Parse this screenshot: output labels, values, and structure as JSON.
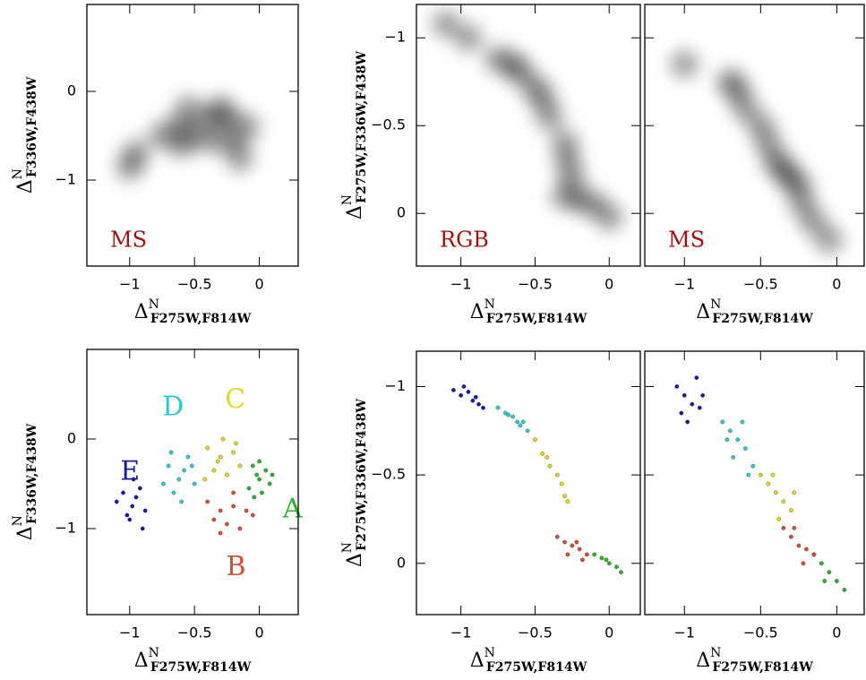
{
  "chart_data": [
    {
      "type": "density",
      "annotation": "MS",
      "annotation_color": "#a01010",
      "xlabel": [
        "Δ",
        "N",
        "F275W,F814W"
      ],
      "ylabel": [
        "Δ",
        "N",
        "F336W,F438W"
      ],
      "xlim": [
        -1.33,
        0.3
      ],
      "ylim": [
        -1.97,
        0.98
      ],
      "xticks": [
        {
          "value": -1,
          "label": "−1"
        },
        {
          "value": -0.5,
          "label": "−0.5"
        },
        0
      ],
      "yticks": [
        0,
        {
          "value": -1,
          "label": "−1"
        }
      ],
      "ytick_labels": true,
      "color": "#000000",
      "x": [
        -0.95,
        -0.62,
        -0.55,
        -0.4,
        -0.25,
        -0.2,
        -0.35,
        -0.75,
        -0.1,
        -1.0,
        -0.6,
        -0.15,
        -0.5,
        -0.3
      ],
      "y": [
        -0.7,
        -0.4,
        -0.2,
        -0.3,
        -0.3,
        -0.55,
        -0.55,
        -0.5,
        -0.4,
        -0.85,
        -0.6,
        -0.75,
        -0.5,
        -0.2
      ]
    },
    {
      "type": "density",
      "annotation": "RGB",
      "annotation_color": "#a01010",
      "xlabel": [
        "Δ",
        "N",
        "F275W,F814W"
      ],
      "ylabel": [
        "Δ",
        "N",
        "F275W,F336W,F438W"
      ],
      "xlim": [
        -1.3,
        0.21
      ],
      "ylim": [
        0.3,
        -1.19
      ],
      "xticks": [
        {
          "value": -1,
          "label": "−1"
        },
        {
          "value": -0.5,
          "label": "−0.5"
        },
        0
      ],
      "yticks": [
        {
          "value": -1,
          "label": "−1"
        },
        {
          "value": -0.5,
          "label": "−0.5"
        },
        0
      ],
      "ytick_labels": true,
      "color": "#000000",
      "x": [
        -0.95,
        -0.65,
        -0.6,
        -0.75,
        -0.5,
        -0.4,
        -0.3,
        -0.28,
        -0.25,
        -0.3,
        -0.2,
        -0.1,
        0.0,
        -1.1,
        -0.45
      ],
      "y": [
        -1.0,
        -0.85,
        -0.8,
        -0.88,
        -0.72,
        -0.55,
        -0.4,
        -0.3,
        -0.2,
        -0.1,
        -0.08,
        -0.05,
        0.02,
        -1.08,
        -0.65
      ]
    },
    {
      "type": "density",
      "annotation": "MS",
      "annotation_color": "#a01010",
      "xlabel": [
        "Δ",
        "N",
        "F275W,F814W"
      ],
      "xlim": [
        -1.26,
        0.18
      ],
      "ylim": [
        0.3,
        -1.19
      ],
      "xticks": [
        {
          "value": -1,
          "label": "−1"
        },
        {
          "value": -0.5,
          "label": "−0.5"
        },
        0
      ],
      "yticks": [
        -1,
        -0.5,
        0
      ],
      "ytick_labels": false,
      "color": "#000000",
      "x": [
        -1.0,
        -0.65,
        -0.6,
        -0.5,
        -0.45,
        -0.4,
        -0.3,
        -0.25,
        -0.22,
        -0.15,
        -0.05,
        -0.7,
        -0.35
      ],
      "y": [
        -0.85,
        -0.7,
        -0.6,
        -0.5,
        -0.4,
        -0.3,
        -0.2,
        -0.15,
        -0.05,
        0.05,
        0.15,
        -0.75,
        -0.25
      ]
    },
    {
      "type": "scatter",
      "label_series": true,
      "xlabel": [
        "Δ",
        "N",
        "F275W,F814W"
      ],
      "ylabel": [
        "Δ",
        "N",
        "F336W,F438W"
      ],
      "xlim": [
        -1.33,
        0.3
      ],
      "ylim": [
        -1.96,
        1.0
      ],
      "xticks": [
        {
          "value": -1,
          "label": "−1"
        },
        {
          "value": -0.5,
          "label": "−0.5"
        },
        0
      ],
      "yticks": [
        0,
        {
          "value": -1,
          "label": "−1"
        }
      ],
      "ytick_labels": true,
      "series": [
        {
          "name": "E",
          "color": "#1a1aa0",
          "x": [
            -1.05,
            -0.98,
            -0.92,
            -0.88,
            -1.0,
            -0.95,
            -1.1,
            -0.9,
            -0.97,
            -1.02
          ],
          "values": [
            -0.6,
            -0.75,
            -0.55,
            -0.8,
            -0.9,
            -0.65,
            -0.7,
            -1.0,
            -0.45,
            -0.85
          ]
        },
        {
          "name": "D",
          "color": "#30c8d0",
          "x": [
            -0.7,
            -0.62,
            -0.55,
            -0.5,
            -0.66,
            -0.58,
            -0.74,
            -0.52,
            -0.6,
            -0.68
          ],
          "values": [
            -0.3,
            -0.45,
            -0.2,
            -0.5,
            -0.6,
            -0.35,
            -0.5,
            -0.3,
            -0.7,
            -0.15
          ]
        },
        {
          "name": "C",
          "color": "#e0d820",
          "x": [
            -0.4,
            -0.3,
            -0.2,
            -0.35,
            -0.25,
            -0.15,
            -0.42,
            -0.28,
            -0.18,
            -0.32
          ],
          "values": [
            -0.1,
            -0.2,
            -0.15,
            -0.35,
            -0.4,
            -0.3,
            -0.45,
            0.0,
            -0.05,
            -0.25
          ]
        },
        {
          "name": "A",
          "color": "#30b030",
          "x": [
            -0.05,
            0.0,
            0.05,
            -0.08,
            0.02,
            -0.02,
            0.08,
            -0.04,
            0.1,
            0.0
          ],
          "values": [
            -0.3,
            -0.45,
            -0.35,
            -0.55,
            -0.6,
            -0.4,
            -0.5,
            -0.65,
            -0.4,
            -0.25
          ]
        },
        {
          "name": "B",
          "color": "#d05030",
          "x": [
            -0.4,
            -0.3,
            -0.2,
            -0.1,
            -0.35,
            -0.25,
            -0.15,
            -0.05,
            -0.3,
            -0.2
          ],
          "values": [
            -0.7,
            -0.8,
            -0.75,
            -0.8,
            -0.9,
            -0.95,
            -1.0,
            -0.85,
            -1.05,
            -0.6
          ]
        }
      ]
    },
    {
      "type": "scatter",
      "xlabel": [
        "Δ",
        "N",
        "F275W,F814W"
      ],
      "ylabel": [
        "Δ",
        "N",
        "F275W,F336W,F438W"
      ],
      "xlim": [
        -1.3,
        0.21
      ],
      "ylim": [
        0.29,
        -1.2
      ],
      "xticks": [
        {
          "value": -1,
          "label": "−1"
        },
        {
          "value": -0.5,
          "label": "−0.5"
        },
        0
      ],
      "yticks": [
        {
          "value": -1,
          "label": "−1"
        },
        {
          "value": -0.5,
          "label": "−0.5"
        },
        0
      ],
      "ytick_labels": true,
      "series": [
        {
          "color": "#1a1aa0",
          "x": [
            -1.05,
            -1.0,
            -0.95,
            -0.92,
            -0.88,
            -0.85,
            -0.98,
            -0.9
          ],
          "values": [
            -0.98,
            -0.95,
            -0.97,
            -0.92,
            -0.9,
            -0.88,
            -1.0,
            -0.94
          ]
        },
        {
          "color": "#30c8d0",
          "x": [
            -0.75,
            -0.7,
            -0.65,
            -0.62,
            -0.6,
            -0.55,
            -0.68,
            -0.58
          ],
          "values": [
            -0.88,
            -0.85,
            -0.83,
            -0.8,
            -0.78,
            -0.75,
            -0.84,
            -0.8
          ]
        },
        {
          "color": "#e0d820",
          "x": [
            -0.5,
            -0.45,
            -0.4,
            -0.35,
            -0.32,
            -0.3,
            -0.28,
            -0.42
          ],
          "values": [
            -0.7,
            -0.62,
            -0.55,
            -0.5,
            -0.45,
            -0.38,
            -0.35,
            -0.6
          ]
        },
        {
          "color": "#30b030",
          "x": [
            -0.1,
            -0.05,
            0.0,
            0.05,
            0.08,
            -0.02
          ],
          "values": [
            -0.05,
            -0.03,
            0.0,
            0.02,
            0.05,
            -0.02
          ]
        },
        {
          "color": "#d05030",
          "x": [
            -0.35,
            -0.3,
            -0.25,
            -0.2,
            -0.15,
            -0.28,
            -0.22,
            -0.18
          ],
          "values": [
            -0.15,
            -0.12,
            -0.1,
            -0.08,
            -0.05,
            -0.05,
            -0.12,
            -0.02
          ]
        }
      ]
    },
    {
      "type": "scatter",
      "xlabel": [
        "Δ",
        "N",
        "F275W,F814W"
      ],
      "xlim": [
        -1.26,
        0.18
      ],
      "ylim": [
        0.29,
        -1.2
      ],
      "xticks": [
        {
          "value": -1,
          "label": "−1"
        },
        {
          "value": -0.5,
          "label": "−0.5"
        },
        0
      ],
      "yticks": [
        -1,
        -0.5,
        0
      ],
      "ytick_labels": false,
      "series": [
        {
          "color": "#1a1aa0",
          "x": [
            -1.05,
            -1.0,
            -0.95,
            -0.9,
            -0.98,
            -0.92,
            -1.02,
            -0.88
          ],
          "values": [
            -1.0,
            -0.95,
            -0.9,
            -0.88,
            -0.8,
            -1.05,
            -0.85,
            -0.95
          ]
        },
        {
          "color": "#30c8d0",
          "x": [
            -0.75,
            -0.7,
            -0.65,
            -0.6,
            -0.55,
            -0.68,
            -0.62,
            -0.58,
            -0.72
          ],
          "values": [
            -0.8,
            -0.75,
            -0.7,
            -0.65,
            -0.55,
            -0.6,
            -0.8,
            -0.5,
            -0.7
          ]
        },
        {
          "color": "#e0d820",
          "x": [
            -0.5,
            -0.45,
            -0.4,
            -0.35,
            -0.3,
            -0.42,
            -0.38,
            -0.28
          ],
          "values": [
            -0.5,
            -0.45,
            -0.4,
            -0.35,
            -0.3,
            -0.5,
            -0.25,
            -0.4
          ]
        },
        {
          "color": "#30b030",
          "x": [
            -0.15,
            -0.1,
            -0.05,
            0.0,
            0.05,
            -0.08
          ],
          "values": [
            -0.05,
            0.0,
            0.05,
            0.1,
            0.15,
            0.1
          ]
        },
        {
          "color": "#d05030",
          "x": [
            -0.35,
            -0.3,
            -0.25,
            -0.2,
            -0.15,
            -0.28,
            -0.22
          ],
          "values": [
            -0.2,
            -0.15,
            -0.1,
            -0.08,
            -0.05,
            -0.2,
            0.0
          ]
        }
      ]
    }
  ]
}
